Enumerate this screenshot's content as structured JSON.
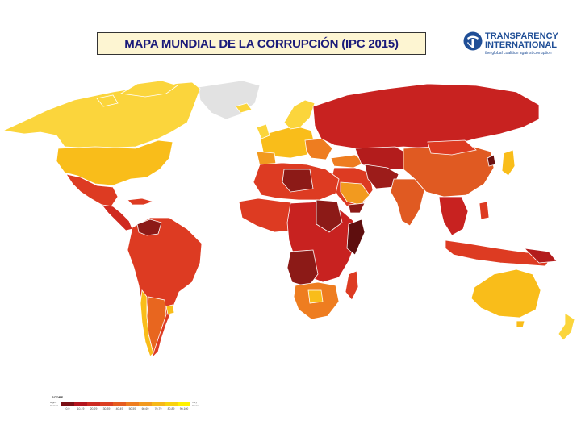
{
  "title": "MAPA MUNDIAL DE LA CORRUPCIÓN  (IPC 2015)",
  "logo": {
    "line1": "TRANSPARENCY",
    "line2": "INTERNATIONAL",
    "tagline": "the global coalition against corruption",
    "icon": "globe-logo-icon",
    "color": "#1f4e96"
  },
  "legend": {
    "label": "SCORE",
    "low_label": "Highly Corrupt",
    "high_label": "Very Clean",
    "bins": [
      "0-9",
      "10-19",
      "20-29",
      "30-39",
      "40-49",
      "50-59",
      "60-69",
      "70-79",
      "80-89",
      "90-100"
    ],
    "colors": [
      "#7a0f14",
      "#b3141e",
      "#cc2a22",
      "#dc3f22",
      "#e65c20",
      "#ee7d20",
      "#f29a1f",
      "#f6b819",
      "#f9d20f",
      "#fff200"
    ]
  },
  "colors": {
    "no_data": "#e2e2e2",
    "very_clean": "#fbd53c",
    "clean": "#f9bd1a",
    "mid": "#ee8a1f",
    "corrupt": "#dd3b22",
    "highly_corrupt": "#8c1a17"
  }
}
